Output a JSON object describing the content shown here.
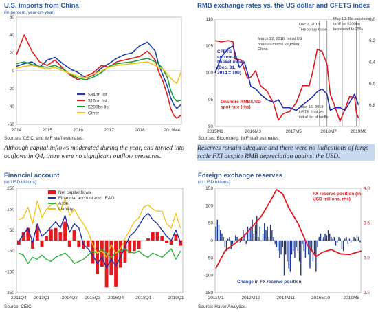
{
  "captions": {
    "left": "Although capital inflows moderated during the year, and turned into outflows in Q4, there were no significant outflow pressures.",
    "right": "Reserves remain adequate and there were no indications of large scale FXI despite RMB depreciation against the USD."
  },
  "chart_data": [
    {
      "type": "line",
      "title": "U.S. imports from China",
      "subtitle": "(In percent, year-on-year)",
      "source": "Sources: CEIC; and IMF staff estimates.",
      "x_range": [
        2014,
        2019.35
      ],
      "x_ticks": [
        2014,
        2015,
        2016,
        2017,
        2018
      ],
      "x_tick_labels": [
        "2014",
        "2015",
        "2016",
        "2017",
        "2018"
      ],
      "x_end_label": "2019M4",
      "ylim": [
        -60,
        60
      ],
      "y_ticks": [
        -60,
        -40,
        -20,
        0,
        20,
        40,
        60
      ],
      "legend_position": "bottom-center",
      "series": [
        {
          "name": "$34bn list",
          "color": "#1f3da8",
          "x": [
            2014,
            2014.25,
            2014.5,
            2014.75,
            2015,
            2015.25,
            2015.5,
            2015.75,
            2016,
            2016.25,
            2016.5,
            2016.75,
            2017,
            2017.25,
            2017.5,
            2017.75,
            2018,
            2018.25,
            2018.5,
            2018.6,
            2018.75,
            2018.9,
            2019,
            2019.1,
            2019.2,
            2019.33
          ],
          "y": [
            5,
            8,
            10,
            4,
            12,
            15,
            8,
            2,
            -2,
            -8,
            -5,
            3,
            8,
            14,
            18,
            20,
            28,
            32,
            22,
            8,
            -5,
            -18,
            -30,
            -38,
            -42,
            -38
          ]
        },
        {
          "name": "$16bn list",
          "color": "#e21b1b",
          "x": [
            2014,
            2014.25,
            2014.5,
            2014.75,
            2015,
            2015.25,
            2015.5,
            2015.75,
            2016,
            2016.25,
            2016.5,
            2016.75,
            2017,
            2017.25,
            2017.5,
            2017.75,
            2018,
            2018.25,
            2018.5,
            2018.6,
            2018.75,
            2018.9,
            2019,
            2019.1,
            2019.2,
            2019.33
          ],
          "y": [
            18,
            40,
            22,
            10,
            6,
            12,
            3,
            -5,
            -10,
            -6,
            -2,
            6,
            4,
            10,
            12,
            14,
            16,
            22,
            12,
            0,
            -12,
            -28,
            -42,
            -50,
            -53,
            -50
          ]
        },
        {
          "name": "$200bn list",
          "color": "#1a9e3a",
          "x": [
            2014,
            2014.25,
            2014.5,
            2014.75,
            2015,
            2015.25,
            2015.5,
            2015.75,
            2016,
            2016.25,
            2016.5,
            2016.75,
            2017,
            2017.25,
            2017.5,
            2017.75,
            2018,
            2018.25,
            2018.5,
            2018.6,
            2018.75,
            2018.9,
            2019,
            2019.1,
            2019.2,
            2019.33
          ],
          "y": [
            8,
            10,
            7,
            5,
            4,
            6,
            2,
            -4,
            -8,
            -10,
            -7,
            -2,
            5,
            8,
            9,
            10,
            12,
            14,
            10,
            8,
            2,
            -8,
            -22,
            -30,
            -34,
            -33
          ]
        },
        {
          "name": "Other",
          "color": "#f2c21b",
          "x": [
            2014,
            2014.25,
            2014.5,
            2014.75,
            2015,
            2015.25,
            2015.5,
            2015.75,
            2016,
            2016.25,
            2016.5,
            2016.75,
            2017,
            2017.25,
            2017.5,
            2017.75,
            2018,
            2018.25,
            2018.5,
            2018.6,
            2018.75,
            2018.9,
            2019,
            2019.1,
            2019.2,
            2019.33
          ],
          "y": [
            3,
            5,
            6,
            4,
            2,
            4,
            0,
            -3,
            -6,
            -8,
            -4,
            0,
            4,
            6,
            7,
            8,
            9,
            10,
            6,
            4,
            2,
            -4,
            -8,
            -12,
            -14,
            -2
          ]
        }
      ]
    },
    {
      "type": "line",
      "title": "RMB exchange rates vs. the US dollar and CFETS index",
      "source": "Sources: Bloomberg, IMF staff estimates.",
      "x_range": [
        2015.0,
        2019.45
      ],
      "x_ticks": [
        2015.0,
        2016.17,
        2017.42,
        2018.5,
        2019.42
      ],
      "x_tick_labels": [
        "2015M1",
        "2016M3",
        "2017M5",
        "2018M7",
        "2019M6"
      ],
      "ylim": [
        90,
        110
      ],
      "y_ticks": [
        90,
        95,
        100,
        105,
        110
      ],
      "y2lim": [
        7.0,
        6.0
      ],
      "y2_ticks": [
        6.0,
        6.2,
        6.4,
        6.6,
        6.8
      ],
      "y2_reversed": true,
      "series": [
        {
          "name": "CFETS currency basket index (Dec. 31, 2014 = 100)",
          "color": "#1d2fb0",
          "axis": "left",
          "x": [
            2015.0,
            2015.2,
            2015.4,
            2015.55,
            2015.75,
            2015.9,
            2016.0,
            2016.1,
            2016.25,
            2016.4,
            2016.6,
            2016.8,
            2016.95,
            2017.1,
            2017.3,
            2017.5,
            2017.7,
            2017.9,
            2018.0,
            2018.15,
            2018.3,
            2018.45,
            2018.55,
            2018.7,
            2018.85,
            2019.0,
            2019.15,
            2019.3,
            2019.42
          ],
          "y": [
            100,
            103,
            104.5,
            105,
            101,
            102,
            100,
            97.5,
            97,
            96,
            95,
            94.5,
            95,
            93.5,
            93.5,
            93,
            94,
            95,
            95.5,
            96.5,
            97,
            96,
            93,
            93.5,
            93.5,
            93,
            94.5,
            96,
            94
          ]
        },
        {
          "name": "Onshore RMB/USD spot rate (rhs)",
          "color": "#e0141a",
          "axis": "right",
          "x": [
            2015.0,
            2015.2,
            2015.4,
            2015.55,
            2015.62,
            2015.8,
            2016.0,
            2016.1,
            2016.25,
            2016.4,
            2016.6,
            2016.8,
            2016.95,
            2017.1,
            2017.3,
            2017.5,
            2017.7,
            2017.9,
            2018.0,
            2018.15,
            2018.3,
            2018.45,
            2018.55,
            2018.7,
            2018.85,
            2019.0,
            2019.15,
            2019.3,
            2019.36,
            2019.42
          ],
          "y": [
            6.2,
            6.21,
            6.2,
            6.21,
            6.37,
            6.38,
            6.55,
            6.54,
            6.48,
            6.62,
            6.67,
            6.78,
            6.94,
            6.88,
            6.86,
            6.78,
            6.62,
            6.62,
            6.5,
            6.28,
            6.3,
            6.42,
            6.7,
            6.82,
            6.95,
            6.84,
            6.72,
            6.73,
            6.88,
            6.92
          ]
        }
      ],
      "annotations": [
        {
          "text": "CFETS currency basket index (Dec. 31, 2014 = 100)",
          "color": "#1d2fb0"
        },
        {
          "text": "Onshore RMB/USD spot rate (rhs)",
          "color": "#e0141a"
        },
        {
          "text": "March 22, 2018: Initial US announcement targeting China",
          "color": "#222"
        },
        {
          "text": "Dec 2, 2018: Temporary truce",
          "color": "#222"
        },
        {
          "text": "May 10: Re-escalation, tariff on $200bn increased to 25%",
          "color": "#222"
        },
        {
          "text": "June 15, 2018: USTR finalizes initial list of tariffs",
          "color": "#222"
        }
      ],
      "event_lines_x": [
        2018.22,
        2018.45,
        2018.92,
        2019.36
      ]
    },
    {
      "type": "bar",
      "title": "Financial account",
      "subtitle": "(In USD billions)",
      "source": "Source: CEIC.",
      "ylim": [
        -250,
        250
      ],
      "y_ticks": [
        -250,
        -150,
        -50,
        50,
        150,
        250
      ],
      "x_tick_labels": [
        "2011Q4",
        "2013Q1",
        "2014Q2",
        "2015Q3",
        "2016Q4",
        "2018Q1",
        "2019Q1"
      ],
      "legend_position": "top-left",
      "bars": {
        "name": "Net capital flows",
        "color": "#e41a1c",
        "values": [
          -20,
          40,
          60,
          -40,
          70,
          -30,
          20,
          55,
          60,
          40,
          90,
          -30,
          50,
          -30,
          -40,
          -30,
          -110,
          -160,
          -125,
          -225,
          -165,
          -220,
          -130,
          -105,
          -60,
          -50,
          -40,
          0,
          10,
          40,
          40,
          20,
          -10,
          -20,
          30,
          -25
        ]
      },
      "series": [
        {
          "name": "Financial account excl. E&O",
          "color": "#1c2fa8",
          "values": [
            -5,
            30,
            60,
            -10,
            80,
            20,
            40,
            65,
            90,
            60,
            120,
            40,
            80,
            60,
            -20,
            -40,
            -70,
            -110,
            -80,
            -130,
            -90,
            -120,
            -80,
            -30,
            20,
            40,
            70,
            110,
            130,
            100,
            80,
            50,
            20,
            0,
            50,
            -10
          ]
        },
        {
          "name": "Asset",
          "color": "#2fb33a",
          "values": [
            -60,
            -70,
            -110,
            -80,
            -90,
            -70,
            -90,
            -100,
            -80,
            -70,
            -60,
            -80,
            -110,
            -100,
            -90,
            -70,
            -50,
            -60,
            -40,
            -60,
            -80,
            -60,
            -50,
            -40,
            -55,
            -60,
            -50,
            -70,
            -80,
            -60,
            -70,
            -80,
            -60,
            -40,
            -90,
            -50
          ]
        },
        {
          "name": "Liability",
          "color": "#f3c21c",
          "values": [
            100,
            110,
            160,
            80,
            190,
            110,
            150,
            170,
            180,
            140,
            200,
            120,
            150,
            110,
            80,
            40,
            -20,
            -60,
            -50,
            -80,
            -20,
            -60,
            -40,
            10,
            50,
            90,
            110,
            160,
            170,
            150,
            140,
            140,
            80,
            60,
            130,
            60
          ]
        }
      ]
    },
    {
      "type": "bar",
      "title": "Foreign exchange reserves",
      "subtitle": "(In USD billions)",
      "source": "Source: Haver Analytics.",
      "ylim": [
        -150,
        150
      ],
      "y_ticks": [
        -150,
        -100,
        -50,
        0,
        50,
        100,
        150
      ],
      "y2lim": [
        2.5,
        4.0
      ],
      "y2_ticks": [
        2.5,
        3.0,
        3.5,
        4.0
      ],
      "x_tick_labels": [
        "2011M1",
        "2012M12",
        "2014M11",
        "2016M10",
        "2019M5"
      ],
      "bars": {
        "name": "Change in FX reserve position",
        "color": "#1f3a93",
        "values": [
          40,
          60,
          45,
          30,
          20,
          10,
          -20,
          -30,
          5,
          10,
          -25,
          -10,
          -5,
          15,
          10,
          0,
          -5,
          10,
          30,
          20,
          -10,
          40,
          35,
          40,
          60,
          20,
          45,
          70,
          10,
          40,
          0,
          20,
          50,
          30,
          40,
          10,
          45,
          30,
          10,
          -10,
          -20,
          -30,
          -50,
          -40,
          -20,
          -100,
          -40,
          -60,
          -80,
          -90,
          -40,
          -30,
          -50,
          -20,
          -30,
          -60,
          -100,
          -10,
          -30,
          -50,
          -20,
          -40,
          -80,
          -30,
          -60,
          -40,
          -90,
          -20,
          10,
          20,
          5,
          10,
          20,
          15,
          30,
          20,
          10,
          5,
          10,
          -15,
          -5,
          10,
          5,
          -25,
          -30,
          5,
          10,
          -10,
          5,
          -5,
          0,
          10,
          5,
          15,
          10,
          -5
        ]
      },
      "series": [
        {
          "name": "FX reserve position (in USD trillions, rhs)",
          "color": "#e3141c",
          "axis": "right",
          "x": [
            0,
            6,
            12,
            18,
            24,
            30,
            36,
            40,
            44,
            48,
            54,
            60,
            66,
            70,
            76,
            82,
            88,
            96
          ],
          "y": [
            2.85,
            3.1,
            3.2,
            3.3,
            3.45,
            3.6,
            3.82,
            3.98,
            3.92,
            3.72,
            3.5,
            3.2,
            3.02,
            3.08,
            3.12,
            3.06,
            3.05,
            3.1
          ]
        }
      ]
    }
  ]
}
